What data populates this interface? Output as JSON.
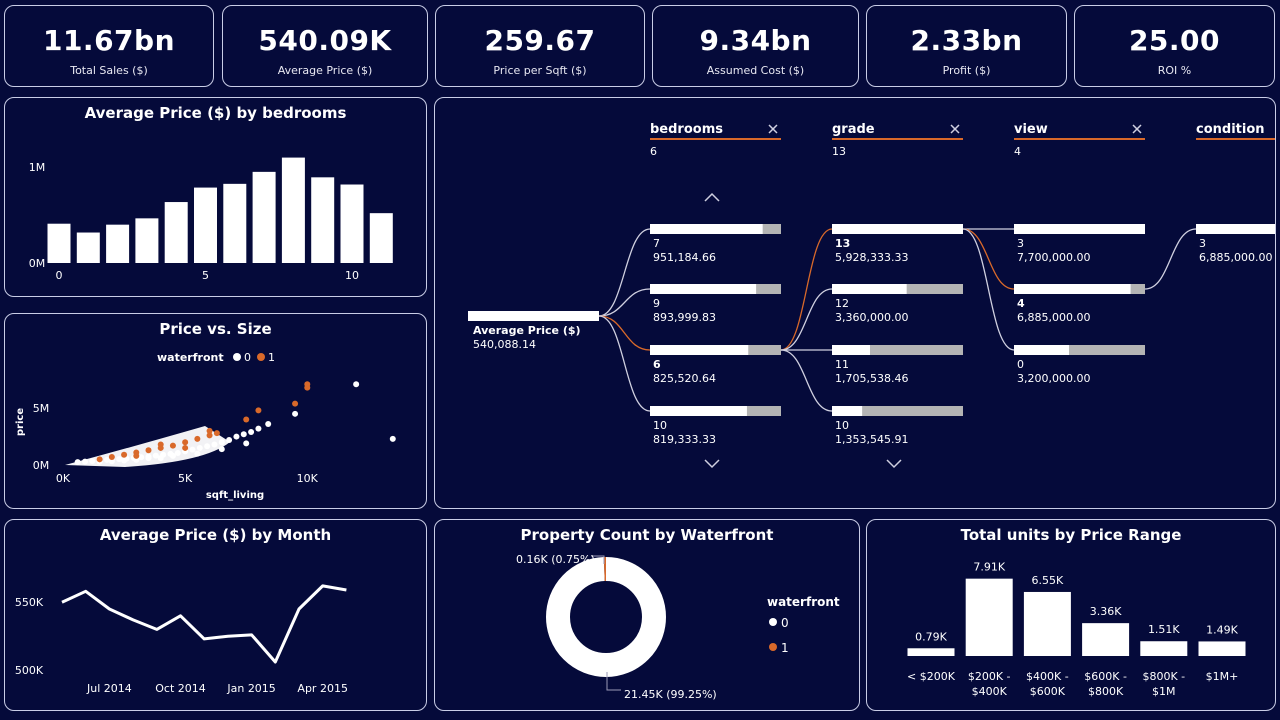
{
  "kpis": [
    {
      "value": "11.67bn",
      "label": "Total Sales ($)"
    },
    {
      "value": "540.09K",
      "label": "Average Price ($)"
    },
    {
      "value": "259.67",
      "label": "Price per Sqft ($)"
    },
    {
      "value": "9.34bn",
      "label": "Assumed Cost ($)"
    },
    {
      "value": "2.33bn",
      "label": "Profit ($)"
    },
    {
      "value": "25.00",
      "label": "ROI %"
    }
  ],
  "colors": {
    "background": "#050a3a",
    "white": "#ffffff",
    "orange": "#d9692a",
    "grey": "#b4b4b4"
  },
  "chart_data": [
    {
      "type": "bar",
      "title": "Average Price ($) by bedrooms",
      "x": [
        0,
        1,
        2,
        3,
        4,
        5,
        6,
        7,
        8,
        9,
        10,
        11
      ],
      "values": [
        410000,
        318000,
        400000,
        466000,
        636000,
        787000,
        826000,
        951000,
        1100000,
        894000,
        819000,
        520000
      ],
      "yticks": [
        "0M",
        "1M"
      ],
      "xticks": [
        "0",
        "5",
        "10"
      ],
      "ylim": [
        0,
        1200000
      ]
    },
    {
      "type": "scatter",
      "title": "Price vs. Size",
      "xlabel": "sqft_living",
      "ylabel": "price",
      "legend_title": "waterfront",
      "legend": [
        "0",
        "1"
      ],
      "xticks": [
        "0K",
        "5K",
        "10K"
      ],
      "yticks": [
        "0M",
        "5M"
      ],
      "xlim": [
        0,
        14000
      ],
      "ylim": [
        0,
        8000000
      ],
      "series": [
        {
          "name": "0",
          "points": [
            [
              600,
              250000
            ],
            [
              900,
              300000
            ],
            [
              1200,
              350000
            ],
            [
              1500,
              400000
            ],
            [
              1800,
              450000
            ],
            [
              2000,
              480000
            ],
            [
              2300,
              520000
            ],
            [
              2600,
              560000
            ],
            [
              2900,
              620000
            ],
            [
              3200,
              680000
            ],
            [
              3500,
              740000
            ],
            [
              3800,
              820000
            ],
            [
              4100,
              900000
            ],
            [
              4400,
              980000
            ],
            [
              4700,
              1050000
            ],
            [
              5000,
              1200000
            ],
            [
              5300,
              1350000
            ],
            [
              5600,
              1500000
            ],
            [
              5900,
              1650000
            ],
            [
              6200,
              1800000
            ],
            [
              6500,
              2000000
            ],
            [
              6800,
              2200000
            ],
            [
              7100,
              2500000
            ],
            [
              7400,
              2700000
            ],
            [
              7700,
              2900000
            ],
            [
              8000,
              3200000
            ],
            [
              8400,
              3600000
            ],
            [
              9500,
              4500000
            ],
            [
              12000,
              7100000
            ],
            [
              13500,
              2300000
            ],
            [
              1500,
              300000
            ],
            [
              2500,
              400000
            ],
            [
              3500,
              600000
            ],
            [
              4500,
              800000
            ],
            [
              5500,
              1000000
            ],
            [
              6500,
              1400000
            ],
            [
              7500,
              1900000
            ],
            [
              4000,
              600000
            ],
            [
              3000,
              450000
            ],
            [
              2000,
              330000
            ]
          ]
        },
        {
          "name": "1",
          "points": [
            [
              1500,
              500000
            ],
            [
              2000,
              700000
            ],
            [
              2500,
              900000
            ],
            [
              3000,
              1100000
            ],
            [
              3500,
              1300000
            ],
            [
              4000,
              1500000
            ],
            [
              4500,
              1700000
            ],
            [
              5000,
              2000000
            ],
            [
              5500,
              2300000
            ],
            [
              6000,
              2600000
            ],
            [
              6300,
              2800000
            ],
            [
              7500,
              4000000
            ],
            [
              9500,
              5400000
            ],
            [
              10000,
              6800000
            ],
            [
              10000,
              7100000
            ],
            [
              8000,
              4800000
            ],
            [
              4000,
              1800000
            ],
            [
              6000,
              3000000
            ],
            [
              3000,
              800000
            ],
            [
              5000,
              1500000
            ]
          ]
        }
      ]
    },
    {
      "type": "line",
      "title": "Average Price ($) by Month",
      "categories": [
        "May 2014",
        "Jun 2014",
        "Jul 2014",
        "Aug 2014",
        "Sep 2014",
        "Oct 2014",
        "Nov 2014",
        "Dec 2014",
        "Jan 2015",
        "Feb 2015",
        "Mar 2015",
        "Apr 2015",
        "May 2015"
      ],
      "values": [
        550000,
        558000,
        545000,
        537000,
        530000,
        540000,
        523000,
        525000,
        526000,
        506000,
        545000,
        562000,
        559000
      ],
      "xticks": [
        "Jul 2014",
        "Oct 2014",
        "Jan 2015",
        "Apr 2015"
      ],
      "yticks": [
        "500K",
        "550K"
      ],
      "ylim": [
        495000,
        570000
      ]
    },
    {
      "type": "pie",
      "title": "Property Count by Waterfront",
      "legend_title": "waterfront",
      "slices": [
        {
          "name": "0",
          "value": 21450,
          "label": "21.45K (99.25%)",
          "color": "#ffffff"
        },
        {
          "name": "1",
          "value": 163,
          "label": "0.16K (0.75%)",
          "color": "#d9692a"
        }
      ]
    },
    {
      "type": "bar",
      "title": "Total units by Price Range",
      "categories": [
        [
          "< $200K"
        ],
        [
          "$200K -",
          "$400K"
        ],
        [
          "$400K -",
          "$600K"
        ],
        [
          "$600K -",
          "$800K"
        ],
        [
          "$800K -",
          "$1M"
        ],
        [
          "$1M+"
        ]
      ],
      "values": [
        0.79,
        7.91,
        6.55,
        3.36,
        1.51,
        1.49
      ],
      "labels": [
        "0.79K",
        "7.91K",
        "6.55K",
        "3.36K",
        "1.51K",
        "1.49K"
      ],
      "ylim": [
        0,
        9
      ]
    }
  ],
  "decomp": {
    "root": {
      "label": "Average Price ($)",
      "value": "540,088.14",
      "fraction": 1
    },
    "levels": [
      {
        "name": "bedrooms",
        "count": "6",
        "nodes": [
          {
            "name": "7",
            "value": "951,184.66",
            "fraction": 0.86
          },
          {
            "name": "9",
            "value": "893,999.83",
            "fraction": 0.81
          },
          {
            "name": "6",
            "value": "825,520.64",
            "fraction": 0.75,
            "selected": true
          },
          {
            "name": "10",
            "value": "819,333.33",
            "fraction": 0.74
          }
        ]
      },
      {
        "name": "grade",
        "count": "13",
        "nodes": [
          {
            "name": "13",
            "value": "5,928,333.33",
            "fraction": 1.0,
            "selected": true
          },
          {
            "name": "12",
            "value": "3,360,000.00",
            "fraction": 0.57
          },
          {
            "name": "11",
            "value": "1,705,538.46",
            "fraction": 0.29
          },
          {
            "name": "10",
            "value": "1,353,545.91",
            "fraction": 0.23
          }
        ]
      },
      {
        "name": "view",
        "count": "4",
        "nodes": [
          {
            "name": "3",
            "value": "7,700,000.00",
            "fraction": 1.0
          },
          {
            "name": "4",
            "value": "6,885,000.00",
            "fraction": 0.89,
            "selected": true
          },
          {
            "name": "0",
            "value": "3,200,000.00",
            "fraction": 0.42
          }
        ]
      },
      {
        "name": "condition",
        "count": "",
        "nodes": [
          {
            "name": "3",
            "value": "6,885,000.00",
            "fraction": 1.0
          }
        ]
      }
    ]
  }
}
